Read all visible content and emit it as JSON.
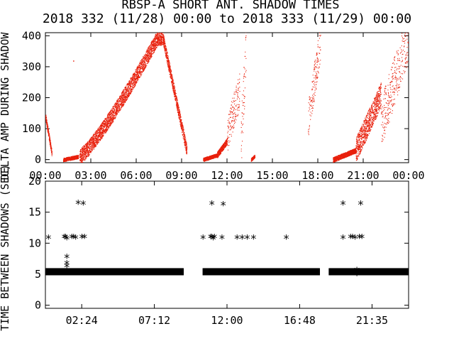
{
  "title": "RBSP-A SHORT ANT. SHADOW TIMES",
  "subtitle": "2018 332 (11/28) 00:00 to 2018 333 (11/29) 00:00",
  "colors": {
    "shadow_amp": "#e8200c",
    "axis": "#000000",
    "background": "#ffffff"
  },
  "chart_data": [
    {
      "type": "scatter",
      "panel": "top",
      "ylabel": "DELTA AMP DURING SHADOW",
      "xlim": [
        "00:00",
        "24:00"
      ],
      "ylim": [
        -10,
        410
      ],
      "x_ticks": [
        "00:00",
        "03:00",
        "06:00",
        "09:00",
        "12:00",
        "15:00",
        "18:00",
        "21:00",
        "00:00"
      ],
      "y_ticks": [
        0,
        100,
        200,
        300,
        400
      ],
      "grid": false,
      "series": [
        {
          "color": "#e8200c",
          "marker": "dot",
          "segments": [
            {
              "x_start": "00:00",
              "x_end": "00:25",
              "y_start": 140,
              "y_end": 20,
              "spread": 10
            },
            {
              "x_start": "01:10",
              "x_end": "02:10",
              "y_start": 0,
              "y_end": 10,
              "spread": 6
            },
            {
              "x_start": "02:15",
              "x_end": "07:45",
              "y_start": 10,
              "y_end": 395,
              "spread": 25,
              "rise_end": "07:25"
            },
            {
              "x_start": "07:45",
              "x_end": "09:20",
              "y_start": 395,
              "y_end": 30,
              "spread": 18
            },
            {
              "x_start": "10:25",
              "x_end": "11:20",
              "y_start": 0,
              "y_end": 15,
              "spread": 6
            },
            {
              "x_start": "11:20",
              "x_end": "12:00",
              "y_start": 15,
              "y_end": 60,
              "spread": 10
            },
            {
              "x_start": "12:00",
              "x_end": "12:50",
              "y_start": 80,
              "y_end": 230,
              "spread": 60,
              "sparse": true
            },
            {
              "x_start": "12:55",
              "x_end": "13:15",
              "y_start": 60,
              "y_end": 360,
              "spread": 90,
              "sparse": true
            },
            {
              "x_start": "13:35",
              "x_end": "13:50",
              "y_start": 0,
              "y_end": 12,
              "spread": 5
            },
            {
              "x_start": "17:20",
              "x_end": "18:10",
              "y_start": 120,
              "y_end": 380,
              "spread": 60,
              "sparse": true
            },
            {
              "x_start": "19:00",
              "x_end": "20:30",
              "y_start": 0,
              "y_end": 30,
              "spread": 8
            },
            {
              "x_start": "20:30",
              "x_end": "22:10",
              "y_start": 30,
              "y_end": 210,
              "spread": 40
            },
            {
              "x_start": "22:10",
              "x_end": "24:00",
              "y_start": 120,
              "y_end": 400,
              "spread": 80,
              "sparse": true
            }
          ],
          "outliers": [
            {
              "x": "01:50",
              "y": 320
            }
          ]
        }
      ]
    },
    {
      "type": "scatter",
      "panel": "bottom",
      "ylabel": "TIME BETWEEN SHADOWS (SEC)",
      "xlim": [
        "00:00",
        "24:00"
      ],
      "ylim": [
        -0.5,
        20
      ],
      "x_ticks": [
        "02:24",
        "07:12",
        "12:00",
        "16:48",
        "21:35"
      ],
      "y_ticks": [
        0,
        5,
        10,
        15,
        20
      ],
      "grid": false,
      "series": [
        {
          "marker": "asterisk",
          "baseline": {
            "y": 5.4,
            "x_start": "00:00",
            "x_end": "24:00",
            "gaps": [
              [
                "09:05",
                "10:25"
              ],
              [
                "18:05",
                "18:45"
              ]
            ]
          },
          "points": [
            {
              "x": "00:12",
              "y": 10.9
            },
            {
              "x": "01:15",
              "y": 11.0
            },
            {
              "x": "01:20",
              "y": 11.0
            },
            {
              "x": "01:25",
              "y": 10.8
            },
            {
              "x": "01:45",
              "y": 11.0
            },
            {
              "x": "01:52",
              "y": 11.0
            },
            {
              "x": "02:00",
              "y": 10.9
            },
            {
              "x": "02:25",
              "y": 11.0
            },
            {
              "x": "02:35",
              "y": 11.0
            },
            {
              "x": "02:10",
              "y": 16.5
            },
            {
              "x": "02:30",
              "y": 16.4
            },
            {
              "x": "01:25",
              "y": 7.8
            },
            {
              "x": "01:25",
              "y": 6.8
            },
            {
              "x": "01:25",
              "y": 6.3
            },
            {
              "x": "10:25",
              "y": 10.9
            },
            {
              "x": "10:55",
              "y": 11.0
            },
            {
              "x": "11:00",
              "y": 11.0
            },
            {
              "x": "11:05",
              "y": 10.8
            },
            {
              "x": "11:10",
              "y": 11.0
            },
            {
              "x": "11:40",
              "y": 10.9
            },
            {
              "x": "11:00",
              "y": 16.4
            },
            {
              "x": "11:45",
              "y": 16.3
            },
            {
              "x": "12:40",
              "y": 10.9
            },
            {
              "x": "13:00",
              "y": 10.9
            },
            {
              "x": "13:20",
              "y": 10.9
            },
            {
              "x": "13:45",
              "y": 10.9
            },
            {
              "x": "15:55",
              "y": 10.9
            },
            {
              "x": "19:40",
              "y": 10.9
            },
            {
              "x": "20:10",
              "y": 11.0
            },
            {
              "x": "20:18",
              "y": 11.0
            },
            {
              "x": "20:28",
              "y": 10.9
            },
            {
              "x": "20:45",
              "y": 11.0
            },
            {
              "x": "20:55",
              "y": 11.0
            },
            {
              "x": "19:40",
              "y": 16.4
            },
            {
              "x": "20:50",
              "y": 16.4
            },
            {
              "x": "20:35",
              "y": 5.7
            },
            {
              "x": "20:35",
              "y": 5.0
            }
          ]
        }
      ]
    }
  ]
}
